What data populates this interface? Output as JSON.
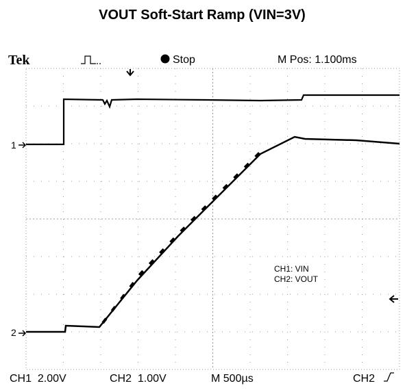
{
  "title": "VOUT Soft-Start Ramp (VIN=3V)",
  "header": {
    "brand": "Tek",
    "status": "Stop",
    "position": "M Pos: 1.100ms"
  },
  "markers": {
    "ch1": "1",
    "ch2": "2"
  },
  "legend": [
    "CH1: VIN",
    "CH2: VOUT"
  ],
  "footer": {
    "ch1": "CH1  2.00V",
    "ch2": "CH2  1.00V",
    "time": "M 500µs",
    "trigger": "CH2"
  }
}
